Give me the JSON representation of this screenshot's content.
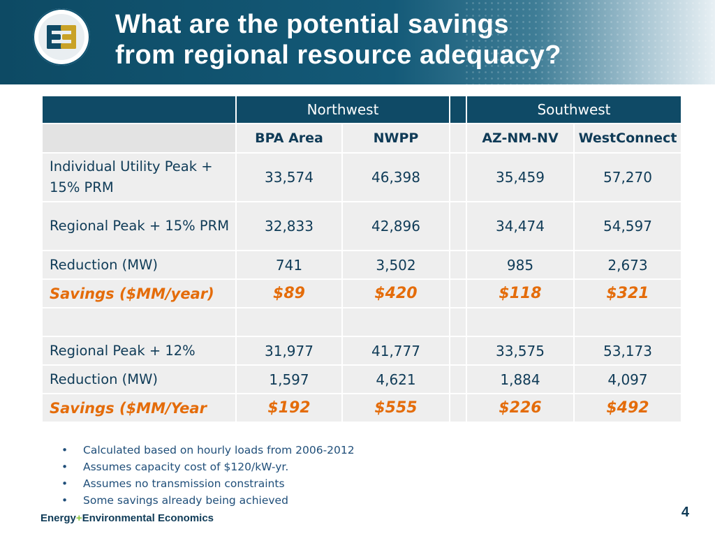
{
  "header": {
    "title_line1": "What are the potential savings",
    "title_line2": "from regional resource adequacy?"
  },
  "table": {
    "groups": [
      "Northwest",
      "Southwest"
    ],
    "columns": [
      "BPA Area",
      "NWPP",
      "AZ-NM-NV",
      "WestConnect"
    ],
    "rows": [
      {
        "label": "Individual Utility Peak + 15% PRM",
        "values": [
          "33,574",
          "46,398",
          "35,459",
          "57,270"
        ]
      },
      {
        "label": "Regional Peak + 15% PRM",
        "values": [
          "32,833",
          "42,896",
          "34,474",
          "54,597"
        ]
      },
      {
        "label": "Reduction (MW)",
        "values": [
          "741",
          "3,502",
          "985",
          "2,673"
        ]
      },
      {
        "label": "Savings ($MM/year)",
        "values": [
          "$89",
          "$420",
          "$118",
          "$321"
        ]
      },
      {
        "label": "",
        "values": [
          "",
          "",
          "",
          ""
        ]
      },
      {
        "label": "Regional Peak + 12%",
        "values": [
          "31,977",
          "41,777",
          "33,575",
          "53,173"
        ]
      },
      {
        "label": "Reduction (MW)",
        "values": [
          "1,597",
          "4,621",
          "1,884",
          "4,097"
        ]
      },
      {
        "label": "Savings ($MM/Year",
        "values": [
          "$192",
          "$555",
          "$226",
          "$492"
        ]
      }
    ]
  },
  "notes": [
    "Calculated based on hourly loads from 2006-2012",
    "Assumes capacity cost of $120/kW-yr.",
    "Assumes no transmission constraints",
    "Some savings already being achieved"
  ],
  "bullet": "•",
  "footer": {
    "brand_part1": "Energy",
    "brand_plus": "+",
    "brand_part2": "Environmental Economics",
    "page_number": "4"
  },
  "colors": {
    "header_blue": "#0f4a66",
    "savings_orange": "#e46c0a",
    "logo_gold": "#c9a227"
  },
  "icons": {
    "logo": "e3-logo"
  }
}
